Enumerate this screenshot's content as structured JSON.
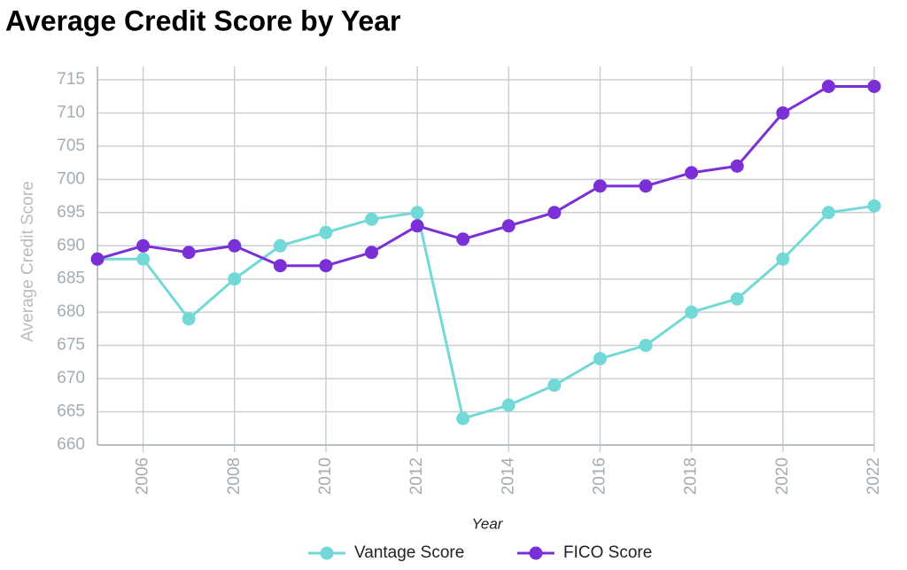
{
  "chart_data": {
    "type": "line",
    "title": "Average Credit Score by Year",
    "x_label": "Year",
    "y_label": "Average Credit Score",
    "x": [
      2005,
      2006,
      2007,
      2008,
      2009,
      2010,
      2011,
      2012,
      2013,
      2014,
      2015,
      2016,
      2017,
      2018,
      2019,
      2020,
      2021,
      2022
    ],
    "series": [
      {
        "name": "Vantage Score",
        "color": "#72d9d7",
        "values": [
          688,
          688,
          679,
          685,
          690,
          692,
          694,
          695,
          664,
          666,
          669,
          673,
          675,
          680,
          682,
          688,
          695,
          696
        ]
      },
      {
        "name": "FICO Score",
        "color": "#7b2fd6",
        "values": [
          688,
          690,
          689,
          690,
          687,
          687,
          689,
          693,
          691,
          693,
          695,
          699,
          699,
          701,
          702,
          710,
          714,
          714
        ]
      }
    ],
    "xlim": [
      2005,
      2022
    ],
    "xticks": [
      2006,
      2008,
      2010,
      2012,
      2014,
      2016,
      2018,
      2020,
      2022
    ],
    "ylim": [
      660,
      717
    ],
    "yticks": [
      660,
      665,
      670,
      675,
      680,
      685,
      690,
      695,
      700,
      705,
      710,
      715
    ],
    "grid": true,
    "legend": "bottom"
  }
}
